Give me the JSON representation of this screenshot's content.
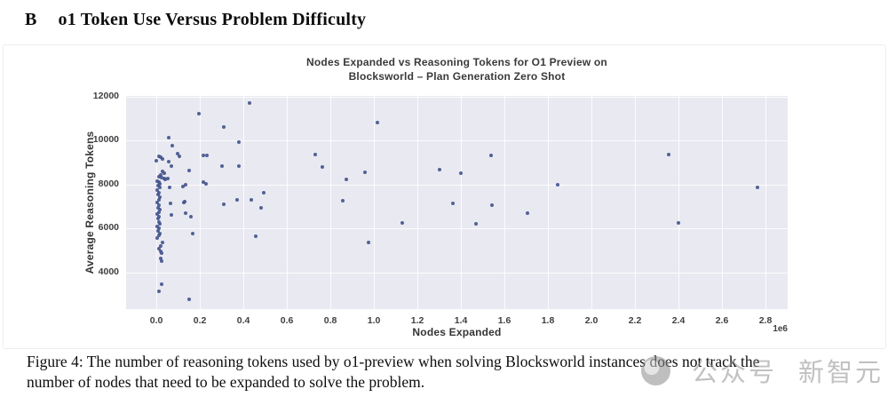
{
  "page": {
    "heading": {
      "letter": "B",
      "title": "o1 Token Use Versus Problem Difficulty"
    },
    "caption_lines": [
      "Figure 4: The number of reasoning tokens used by o1-preview when solving Blocksworld instances does not track the",
      "number of nodes that need to be expanded to solve the problem."
    ],
    "watermark": {
      "icon": "gray-circle-logo",
      "label_1": "公众号",
      "label_2": "新智元"
    }
  },
  "chart_data": {
    "type": "scatter",
    "title_lines": [
      "Nodes Expanded vs Reasoning Tokens for O1 Preview on",
      "Blocksworld – Plan Generation Zero Shot"
    ],
    "xlabel": "Nodes Expanded",
    "ylabel": "Average Reasoning Tokens",
    "x_scale_note": "1e6",
    "x_unit": "nodes (values in millions)",
    "y_unit": "tokens",
    "xlim": [
      -0.139,
      2.902
    ],
    "ylim": [
      2340,
      12040
    ],
    "grid": true,
    "legend": "none",
    "x_ticks": {
      "values": [
        0.0,
        0.2,
        0.4,
        0.6,
        0.8,
        1.0,
        1.2,
        1.4,
        1.6,
        1.8,
        2.0,
        2.2,
        2.4,
        2.6,
        2.8
      ],
      "labels": [
        "0.0",
        "0.2",
        "0.4",
        "0.6",
        "0.8",
        "1.0",
        "1.2",
        "1.4",
        "1.6",
        "1.8",
        "2.0",
        "2.2",
        "2.4",
        "2.6",
        "2.8"
      ]
    },
    "y_ticks": {
      "values": [
        4000,
        6000,
        8000,
        10000,
        12000
      ],
      "labels": [
        "4000",
        "6000",
        "8000",
        "10000",
        "12000"
      ]
    },
    "colors": {
      "plot_background": "#e9e9f1",
      "gridline": "#ffffff",
      "point": "#44568e",
      "title_text": "#3a3a3a",
      "tick_text": "#3f3f3f"
    },
    "points": [
      [
        0.429,
        11700
      ],
      [
        0.195,
        11250
      ],
      [
        1.018,
        10830
      ],
      [
        0.309,
        10620
      ],
      [
        0.058,
        10140
      ],
      [
        0.381,
        9950
      ],
      [
        0.075,
        9760
      ],
      [
        0.098,
        9400
      ],
      [
        0.106,
        9290
      ],
      [
        0.215,
        9330
      ],
      [
        0.231,
        9320
      ],
      [
        0.73,
        9360
      ],
      [
        1.54,
        9330
      ],
      [
        2.354,
        9360
      ],
      [
        0.012,
        9290
      ],
      [
        0.02,
        9250
      ],
      [
        0.028,
        9170
      ],
      [
        0.0,
        9070
      ],
      [
        0.058,
        9040
      ],
      [
        0.068,
        8860
      ],
      [
        0.302,
        8850
      ],
      [
        0.378,
        8850
      ],
      [
        0.762,
        8810
      ],
      [
        1.3,
        8700
      ],
      [
        0.15,
        8650
      ],
      [
        0.03,
        8600
      ],
      [
        0.038,
        8540
      ],
      [
        1.4,
        8520
      ],
      [
        0.96,
        8580
      ],
      [
        0.02,
        8450
      ],
      [
        0.01,
        8380
      ],
      [
        0.025,
        8330
      ],
      [
        0.035,
        8290
      ],
      [
        0.052,
        8270
      ],
      [
        0.042,
        8230
      ],
      [
        0.875,
        8230
      ],
      [
        0.005,
        8180
      ],
      [
        0.215,
        8100
      ],
      [
        0.229,
        8030
      ],
      [
        1.846,
        8000
      ],
      [
        0.122,
        7930
      ],
      [
        0.133,
        7980
      ],
      [
        0.01,
        8100
      ],
      [
        0.018,
        8020
      ],
      [
        0.008,
        7950
      ],
      [
        0.015,
        7860
      ],
      [
        0.06,
        7860
      ],
      [
        2.765,
        7860
      ],
      [
        0.005,
        7750
      ],
      [
        0.494,
        7650
      ],
      [
        0.012,
        7650
      ],
      [
        0.008,
        7540
      ],
      [
        0.015,
        7440
      ],
      [
        0.01,
        7330
      ],
      [
        0.37,
        7300
      ],
      [
        0.438,
        7300
      ],
      [
        0.31,
        7120
      ],
      [
        0.857,
        7260
      ],
      [
        0.13,
        7230
      ],
      [
        0.127,
        7210
      ],
      [
        1.365,
        7150
      ],
      [
        0.064,
        7160
      ],
      [
        0.005,
        7210
      ],
      [
        0.012,
        7060
      ],
      [
        1.543,
        7050
      ],
      [
        0.483,
        6950
      ],
      [
        0.008,
        6950
      ],
      [
        0.015,
        6850
      ],
      [
        0.01,
        6760
      ],
      [
        0.136,
        6700
      ],
      [
        1.705,
        6720
      ],
      [
        0.005,
        6650
      ],
      [
        0.068,
        6640
      ],
      [
        0.16,
        6550
      ],
      [
        0.012,
        6550
      ],
      [
        0.008,
        6460
      ],
      [
        1.13,
        6280
      ],
      [
        2.4,
        6250
      ],
      [
        1.47,
        6200
      ],
      [
        0.01,
        6320
      ],
      [
        0.015,
        6220
      ],
      [
        0.005,
        6100
      ],
      [
        0.012,
        6000
      ],
      [
        0.008,
        5900
      ],
      [
        0.015,
        5790
      ],
      [
        0.167,
        5780
      ],
      [
        0.01,
        5690
      ],
      [
        0.455,
        5640
      ],
      [
        0.005,
        5590
      ],
      [
        0.028,
        5370
      ],
      [
        0.975,
        5380
      ],
      [
        0.022,
        5200
      ],
      [
        0.012,
        5100
      ],
      [
        0.02,
        4960
      ],
      [
        0.025,
        4870
      ],
      [
        0.02,
        4630
      ],
      [
        0.025,
        4520
      ],
      [
        0.025,
        3480
      ],
      [
        0.01,
        3140
      ],
      [
        0.152,
        2780
      ]
    ]
  }
}
